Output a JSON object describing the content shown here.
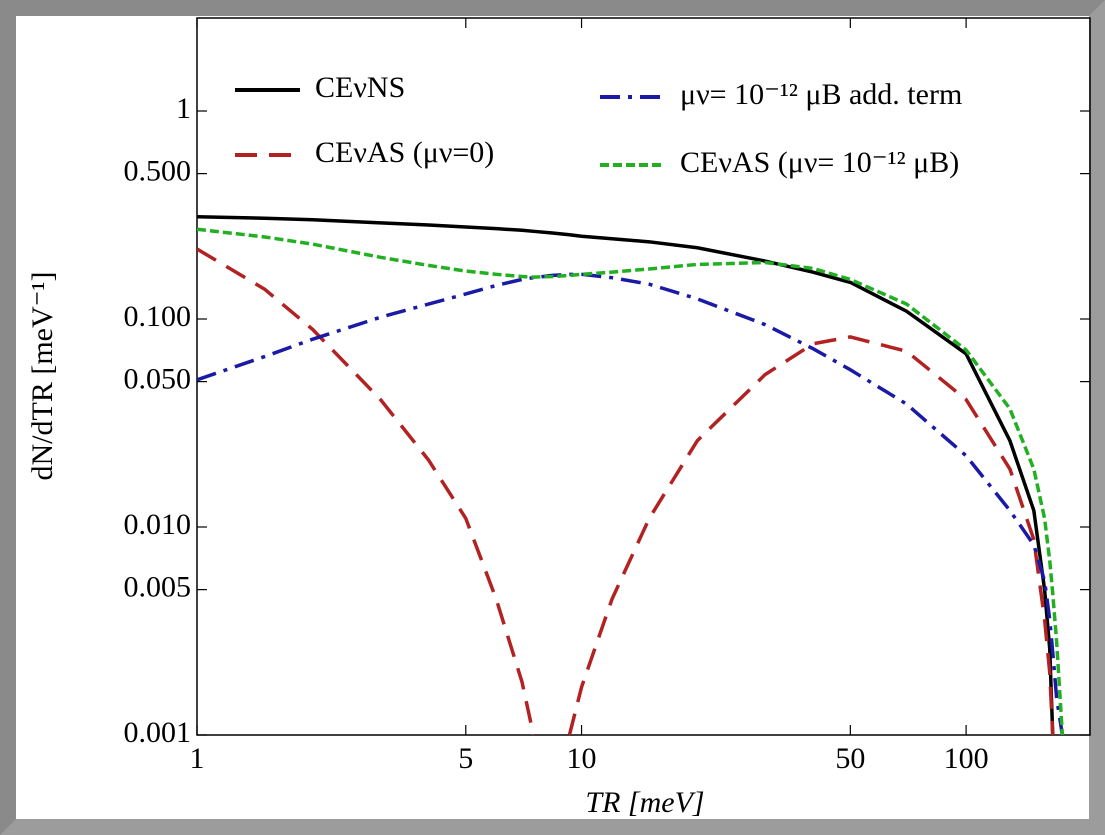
{
  "chart_data": {
    "type": "line",
    "xlabel": "TR [meV]",
    "ylabel": "dN/dTR [meV⁻¹]",
    "xscale": "log",
    "yscale": "log",
    "xlim": [
      1,
      210
    ],
    "ylim": [
      0.001,
      2.8
    ],
    "xticks": [
      1,
      5,
      10,
      50,
      100
    ],
    "yticks": [
      0.001,
      0.005,
      {
        "value": 0.01,
        "label": "0.010"
      },
      {
        "value": 0.05,
        "label": "0.050"
      },
      {
        "value": 0.1,
        "label": "0.100"
      },
      {
        "value": 0.5,
        "label": "0.500"
      },
      1
    ],
    "x": [
      1,
      1.5,
      2,
      3,
      4,
      5,
      6,
      7,
      7.5,
      8.4,
      9.3,
      10,
      12,
      15,
      20,
      30,
      40,
      50,
      70,
      100,
      130,
      150,
      160,
      165,
      168,
      172,
      178
    ],
    "series": [
      {
        "name": "CEνNS",
        "color": "#000000",
        "style": "solid",
        "values": [
          0.31,
          0.305,
          0.3,
          0.29,
          0.283,
          0.277,
          0.272,
          0.267,
          0.264,
          0.259,
          0.254,
          0.25,
          0.243,
          0.235,
          0.22,
          0.19,
          0.168,
          0.15,
          0.109,
          0.068,
          0.026,
          0.012,
          0.005,
          0.0026,
          0.001,
          null,
          null
        ]
      },
      {
        "name": "CEνAS (μν=0)",
        "color": "#b22222",
        "style": "dashed",
        "values": [
          0.217,
          0.139,
          0.089,
          0.041,
          0.021,
          0.011,
          0.0045,
          0.0018,
          0.001,
          null,
          0.001,
          0.0017,
          0.0045,
          0.011,
          0.026,
          0.054,
          0.076,
          0.082,
          0.07,
          0.041,
          0.019,
          0.0087,
          0.0036,
          0.002,
          0.001,
          null,
          null
        ]
      },
      {
        "name": "μν= 10⁻¹² μB add. term",
        "color": "#1a1aa6",
        "style": "dashdot",
        "values": [
          0.051,
          0.066,
          0.08,
          0.102,
          0.118,
          0.132,
          0.145,
          0.155,
          0.158,
          0.162,
          0.164,
          0.164,
          0.158,
          0.147,
          0.125,
          0.094,
          0.072,
          0.057,
          0.039,
          0.022,
          0.012,
          0.0082,
          0.0055,
          0.0036,
          0.0025,
          0.0015,
          0.001
        ]
      },
      {
        "name": "CEνAS (μν= 10⁻¹² μB)",
        "color": "#22b022",
        "style": "dotted",
        "values": [
          0.27,
          0.248,
          0.229,
          0.198,
          0.181,
          0.17,
          0.164,
          0.16,
          0.159,
          0.16,
          0.162,
          0.164,
          0.168,
          0.174,
          0.183,
          0.187,
          0.175,
          0.155,
          0.118,
          0.071,
          0.037,
          0.019,
          0.011,
          0.0069,
          0.0048,
          0.0028,
          0.001
        ]
      }
    ]
  }
}
